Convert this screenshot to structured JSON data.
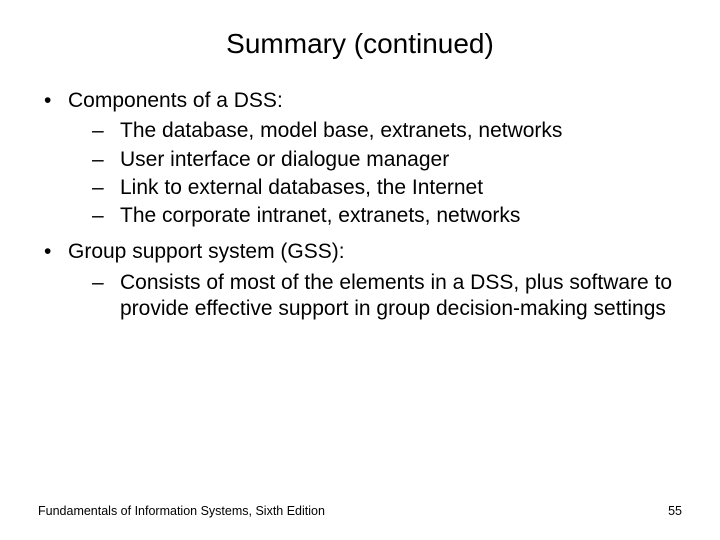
{
  "title": "Summary (continued)",
  "b1": {
    "label": "Components of a DSS:",
    "subs": {
      "s1": "The database, model base, extranets, networks",
      "s2": "User interface or dialogue manager",
      "s3": "Link to external databases, the Internet",
      "s4": "The corporate intranet, extranets, networks"
    }
  },
  "b2": {
    "label": "Group support system (GSS):",
    "subs": {
      "s1": "Consists of most of the elements in a DSS, plus software to provide effective support in group decision-making settings"
    }
  },
  "footer": {
    "source": "Fundamentals of Information Systems, Sixth Edition",
    "page": "55"
  },
  "glyphs": {
    "bullet": "•",
    "dash": "–"
  },
  "colors": {
    "background": "#ffffff",
    "text": "#000000"
  },
  "fonts": {
    "title_size_pt": 21,
    "body_size_pt": 16,
    "footer_size_pt": 9
  }
}
